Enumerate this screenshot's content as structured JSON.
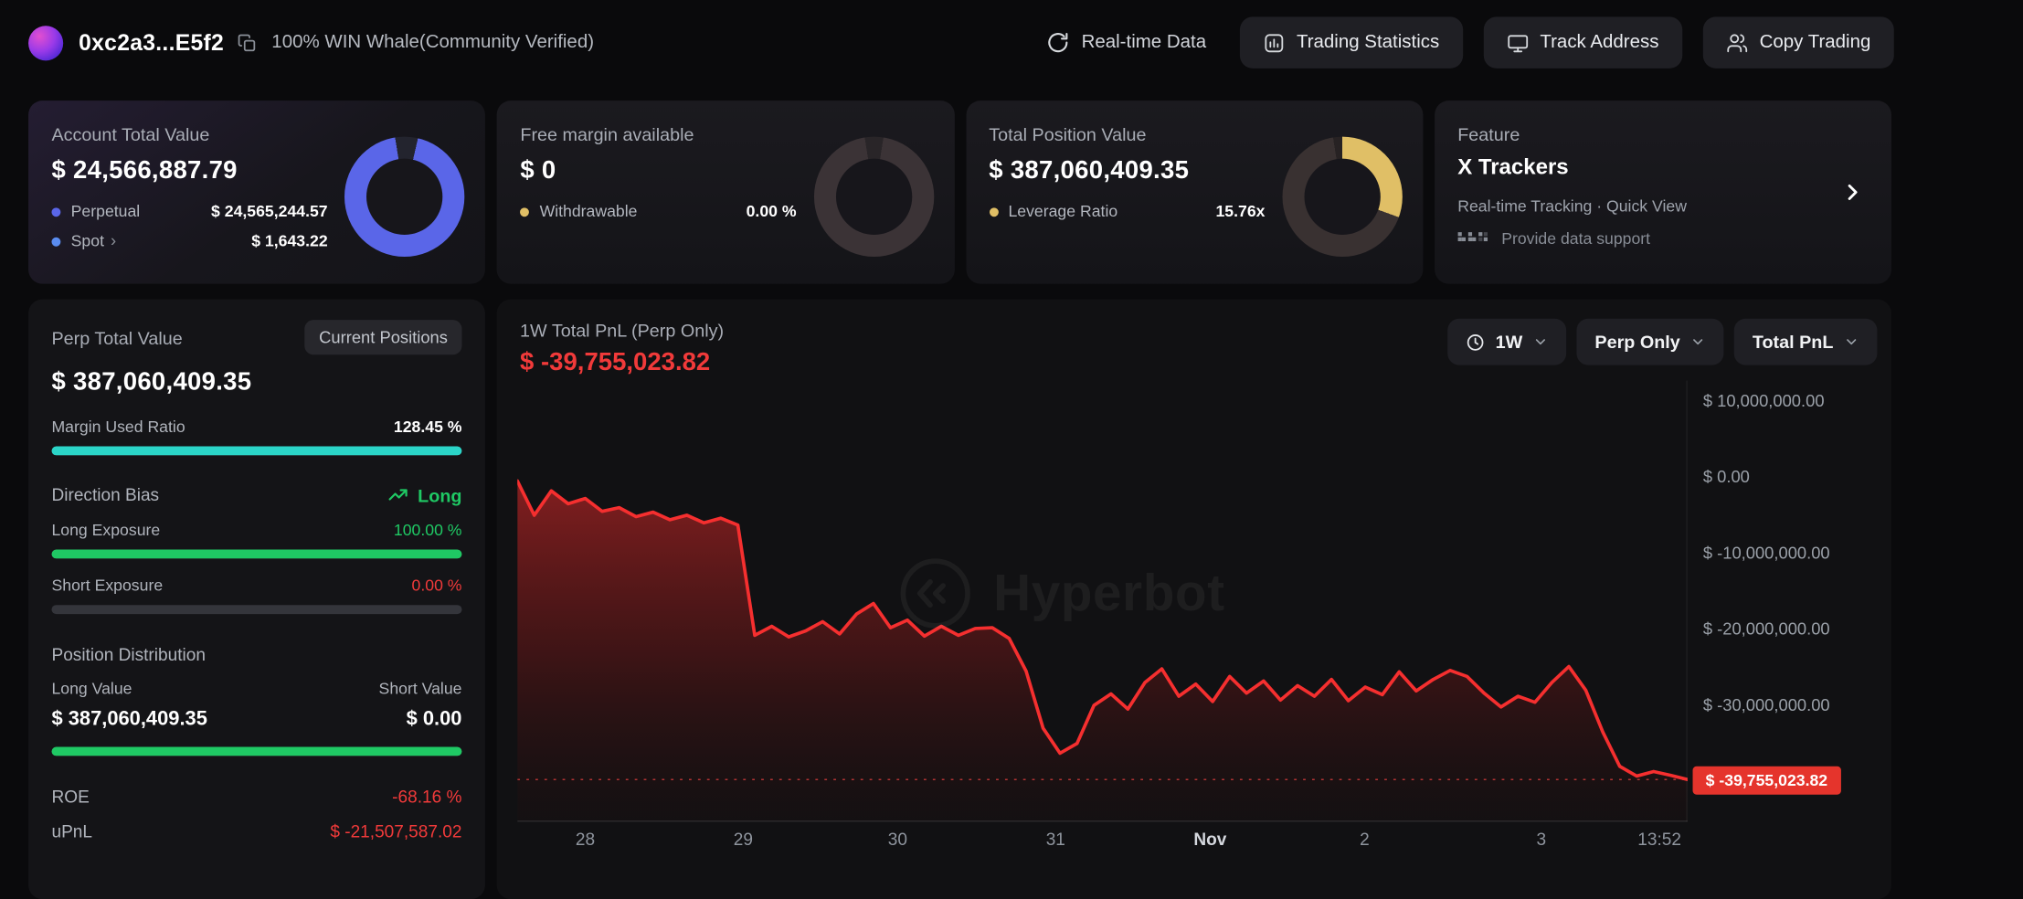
{
  "colors": {
    "accent_red": "#f13a3a",
    "accent_green": "#1fc964",
    "accent_cyan": "#2bd5c8",
    "accent_blue": "#5a66e8",
    "accent_yellow": "#e0bf66",
    "badge_red_bg": "#e5342c"
  },
  "header": {
    "address": "0xc2a3...E5f2",
    "verified_label": "100% WIN Whale(Community Verified)",
    "realtime_label": "Real-time Data",
    "buttons": [
      {
        "label": "Trading Statistics",
        "icon": "bar-chart-icon"
      },
      {
        "label": "Track Address",
        "icon": "monitor-icon"
      },
      {
        "label": "Copy Trading",
        "icon": "users-icon"
      }
    ]
  },
  "cards": {
    "account": {
      "title": "Account Total Value",
      "value": "$ 24,566,887.79",
      "rows": [
        {
          "label": "Perpetual",
          "value": "$ 24,565,244.57",
          "dot": "#5a66e8"
        },
        {
          "label": "Spot",
          "value": "$ 1,643.22",
          "dot": "#5a8cf0"
        }
      ],
      "donut": [
        {
          "color": "#23242e",
          "from": 0,
          "to": 13
        },
        {
          "color": "#5a66e8",
          "from": 13,
          "to": 351
        },
        {
          "color": "#23242e",
          "from": 351,
          "to": 360
        }
      ]
    },
    "free_margin": {
      "title": "Free margin available",
      "value": "$ 0",
      "rows": [
        {
          "label": "Withdrawable",
          "value": "0.00 %",
          "dot": "#e0bf66"
        }
      ],
      "donut": [
        {
          "color": "#292528",
          "from": 0,
          "to": 9
        },
        {
          "color": "#3b3336",
          "from": 9,
          "to": 351
        },
        {
          "color": "#292528",
          "from": 351,
          "to": 360
        }
      ]
    },
    "position": {
      "title": "Total Position Value",
      "value": "$ 387,060,409.35",
      "rows": [
        {
          "label": "Leverage Ratio",
          "value": "15.76x",
          "dot": "#e0bf66"
        }
      ],
      "donut": [
        {
          "color": "#e0bf66",
          "from": 0,
          "to": 110
        },
        {
          "color": "#393131",
          "from": 110,
          "to": 351
        },
        {
          "color": "#272223",
          "from": 351,
          "to": 360
        }
      ]
    },
    "feature": {
      "title": "Feature",
      "name": "X Trackers",
      "subtitle": "Real-time Tracking · Quick View",
      "support": "Provide data support"
    }
  },
  "perp_panel": {
    "title": "Perp Total Value",
    "positions_button": "Current Positions",
    "total_value": "$ 387,060,409.35",
    "margin_used_label": "Margin Used Ratio",
    "margin_used_value": "128.45 %",
    "direction_bias_label": "Direction Bias",
    "direction_bias_value": "Long",
    "long_exposure_label": "Long Exposure",
    "long_exposure_value": "100.00 %",
    "short_exposure_label": "Short Exposure",
    "short_exposure_value": "0.00 %",
    "position_distribution_label": "Position Distribution",
    "long_value_label": "Long Value",
    "short_value_label": "Short Value",
    "long_value": "$ 387,060,409.35",
    "short_value": "$ 0.00",
    "roe_label": "ROE",
    "roe_value": "-68.16 %",
    "upnl_label": "uPnL",
    "upnl_value": "$ -21,507,587.02",
    "bars": {
      "margin_used": 100,
      "long_exposure": 100,
      "short_exposure": 0,
      "long_distribution": 100
    }
  },
  "chart_panel": {
    "subtitle": "1W Total PnL (Perp Only)",
    "value": "$ -39,755,023.82",
    "watermark": "Hyperbot",
    "controls": {
      "range": "1W",
      "scope": "Perp Only",
      "metric": "Total PnL"
    }
  },
  "chart_data": {
    "type": "area",
    "title": "1W Total PnL (Perp Only)",
    "series_name": "Total PnL (USD)",
    "line_color": "#f52f2f",
    "fill_top": "rgba(225,42,42,0.55)",
    "fill_mid": "rgba(170,28,28,0.30)",
    "fill_bottom": "rgba(70,10,10,0.06)",
    "ymax": 12700000,
    "ymin": -45300000,
    "grid": false,
    "current_value": -39755023.82,
    "current_value_label": "$ -39,755,023.82",
    "y_ticks": [
      {
        "label": "$ 10,000,000.00",
        "value": 10000000
      },
      {
        "label": "$ 0.00",
        "value": 0
      },
      {
        "label": "$ -10,000,000.00",
        "value": -10000000
      },
      {
        "label": "$ -20,000,000.00",
        "value": -20000000
      },
      {
        "label": "$ -30,000,000.00",
        "value": -30000000
      }
    ],
    "x_ticks": [
      {
        "label": "28",
        "pos": 0.058
      },
      {
        "label": "29",
        "pos": 0.193
      },
      {
        "label": "30",
        "pos": 0.325
      },
      {
        "label": "31",
        "pos": 0.46
      },
      {
        "label": "Nov",
        "pos": 0.592,
        "emphasis": true
      },
      {
        "label": "2",
        "pos": 0.724
      },
      {
        "label": "3",
        "pos": 0.875
      },
      {
        "label": "13:52",
        "pos": 0.976
      }
    ],
    "pnl_usd_millions": [
      -0.5,
      -5.0,
      -1.8,
      -3.5,
      -2.8,
      -4.5,
      -4.0,
      -5.2,
      -4.6,
      -5.6,
      -5.0,
      -6.0,
      -5.4,
      -6.3,
      -20.8,
      -19.6,
      -21.0,
      -20.2,
      -19.0,
      -20.6,
      -18.0,
      -16.6,
      -19.8,
      -18.8,
      -20.9,
      -19.6,
      -20.8,
      -19.9,
      -19.8,
      -21.2,
      -25.5,
      -33.0,
      -36.3,
      -35.0,
      -30.0,
      -28.5,
      -30.5,
      -27.0,
      -25.2,
      -28.8,
      -27.2,
      -29.5,
      -26.2,
      -28.4,
      -26.8,
      -29.3,
      -27.4,
      -28.8,
      -26.6,
      -29.4,
      -27.6,
      -28.6,
      -25.6,
      -28.1,
      -26.6,
      -25.4,
      -26.2,
      -28.4,
      -30.2,
      -28.8,
      -29.6,
      -27.0,
      -24.9,
      -28.0,
      -33.5,
      -38.0,
      -39.3,
      -38.7,
      -39.2,
      -39.755
    ]
  }
}
